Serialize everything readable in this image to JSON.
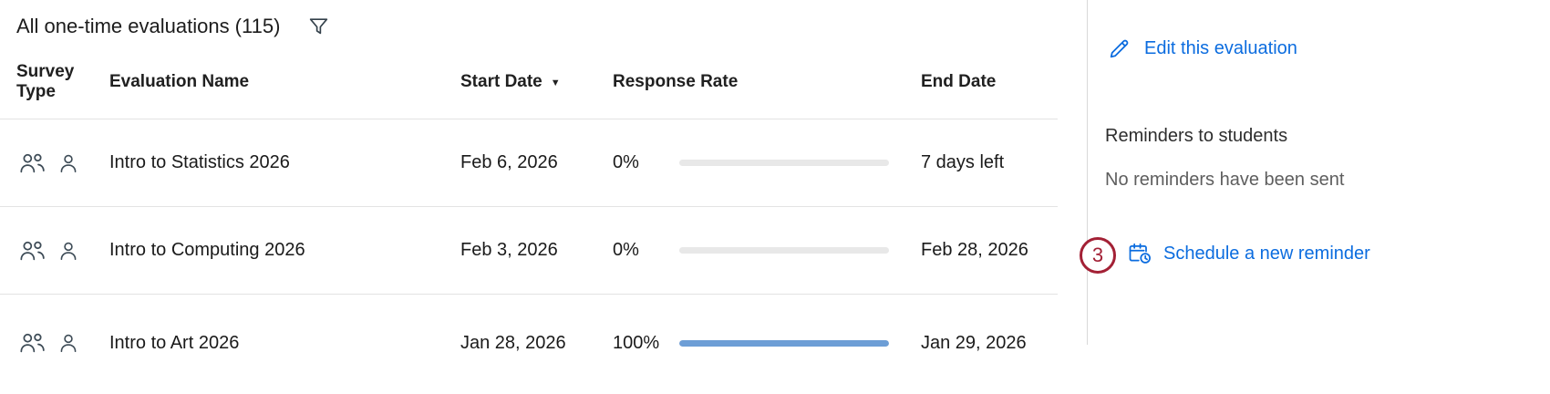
{
  "header": {
    "title": "All one-time evaluations (115)"
  },
  "table": {
    "columns": [
      "Survey Type",
      "Evaluation Name",
      "Start Date",
      "Response Rate",
      "End Date"
    ],
    "sort_column": "Start Date",
    "sort_indicator": "▼",
    "rows": [
      {
        "evaluation_name": "Intro to Statistics 2026",
        "start_date": "Feb 6, 2026",
        "response_rate": "0%",
        "response_rate_pct": 0,
        "end_date": "7 days left"
      },
      {
        "evaluation_name": "Intro to Computing 2026",
        "start_date": "Feb 3, 2026",
        "response_rate": "0%",
        "response_rate_pct": 0,
        "end_date": "Feb 28, 2026"
      },
      {
        "evaluation_name": "Intro to Art 2026",
        "start_date": "Jan 28, 2026",
        "response_rate": "100%",
        "response_rate_pct": 100,
        "end_date": "Jan 29, 2026"
      }
    ]
  },
  "panel": {
    "edit_label": "Edit this evaluation",
    "reminders_title": "Reminders to students",
    "reminders_status": "No reminders have been sent",
    "schedule_label": "Schedule a new reminder",
    "step_badge": "3"
  },
  "icons": {
    "filter": "funnel-icon",
    "survey_type_group": "people-group-icon",
    "survey_type_individual": "person-icon",
    "edit": "pencil-icon",
    "schedule": "calendar-clock-icon",
    "sort": "caret-down-icon"
  },
  "colors": {
    "link_blue": "#0b6cdf",
    "progress_fill": "#6d9ed6",
    "progress_track": "#e8e8e8",
    "badge_red": "#a32035",
    "divider": "#d9d9d9",
    "text_primary": "#1a1a1a"
  }
}
